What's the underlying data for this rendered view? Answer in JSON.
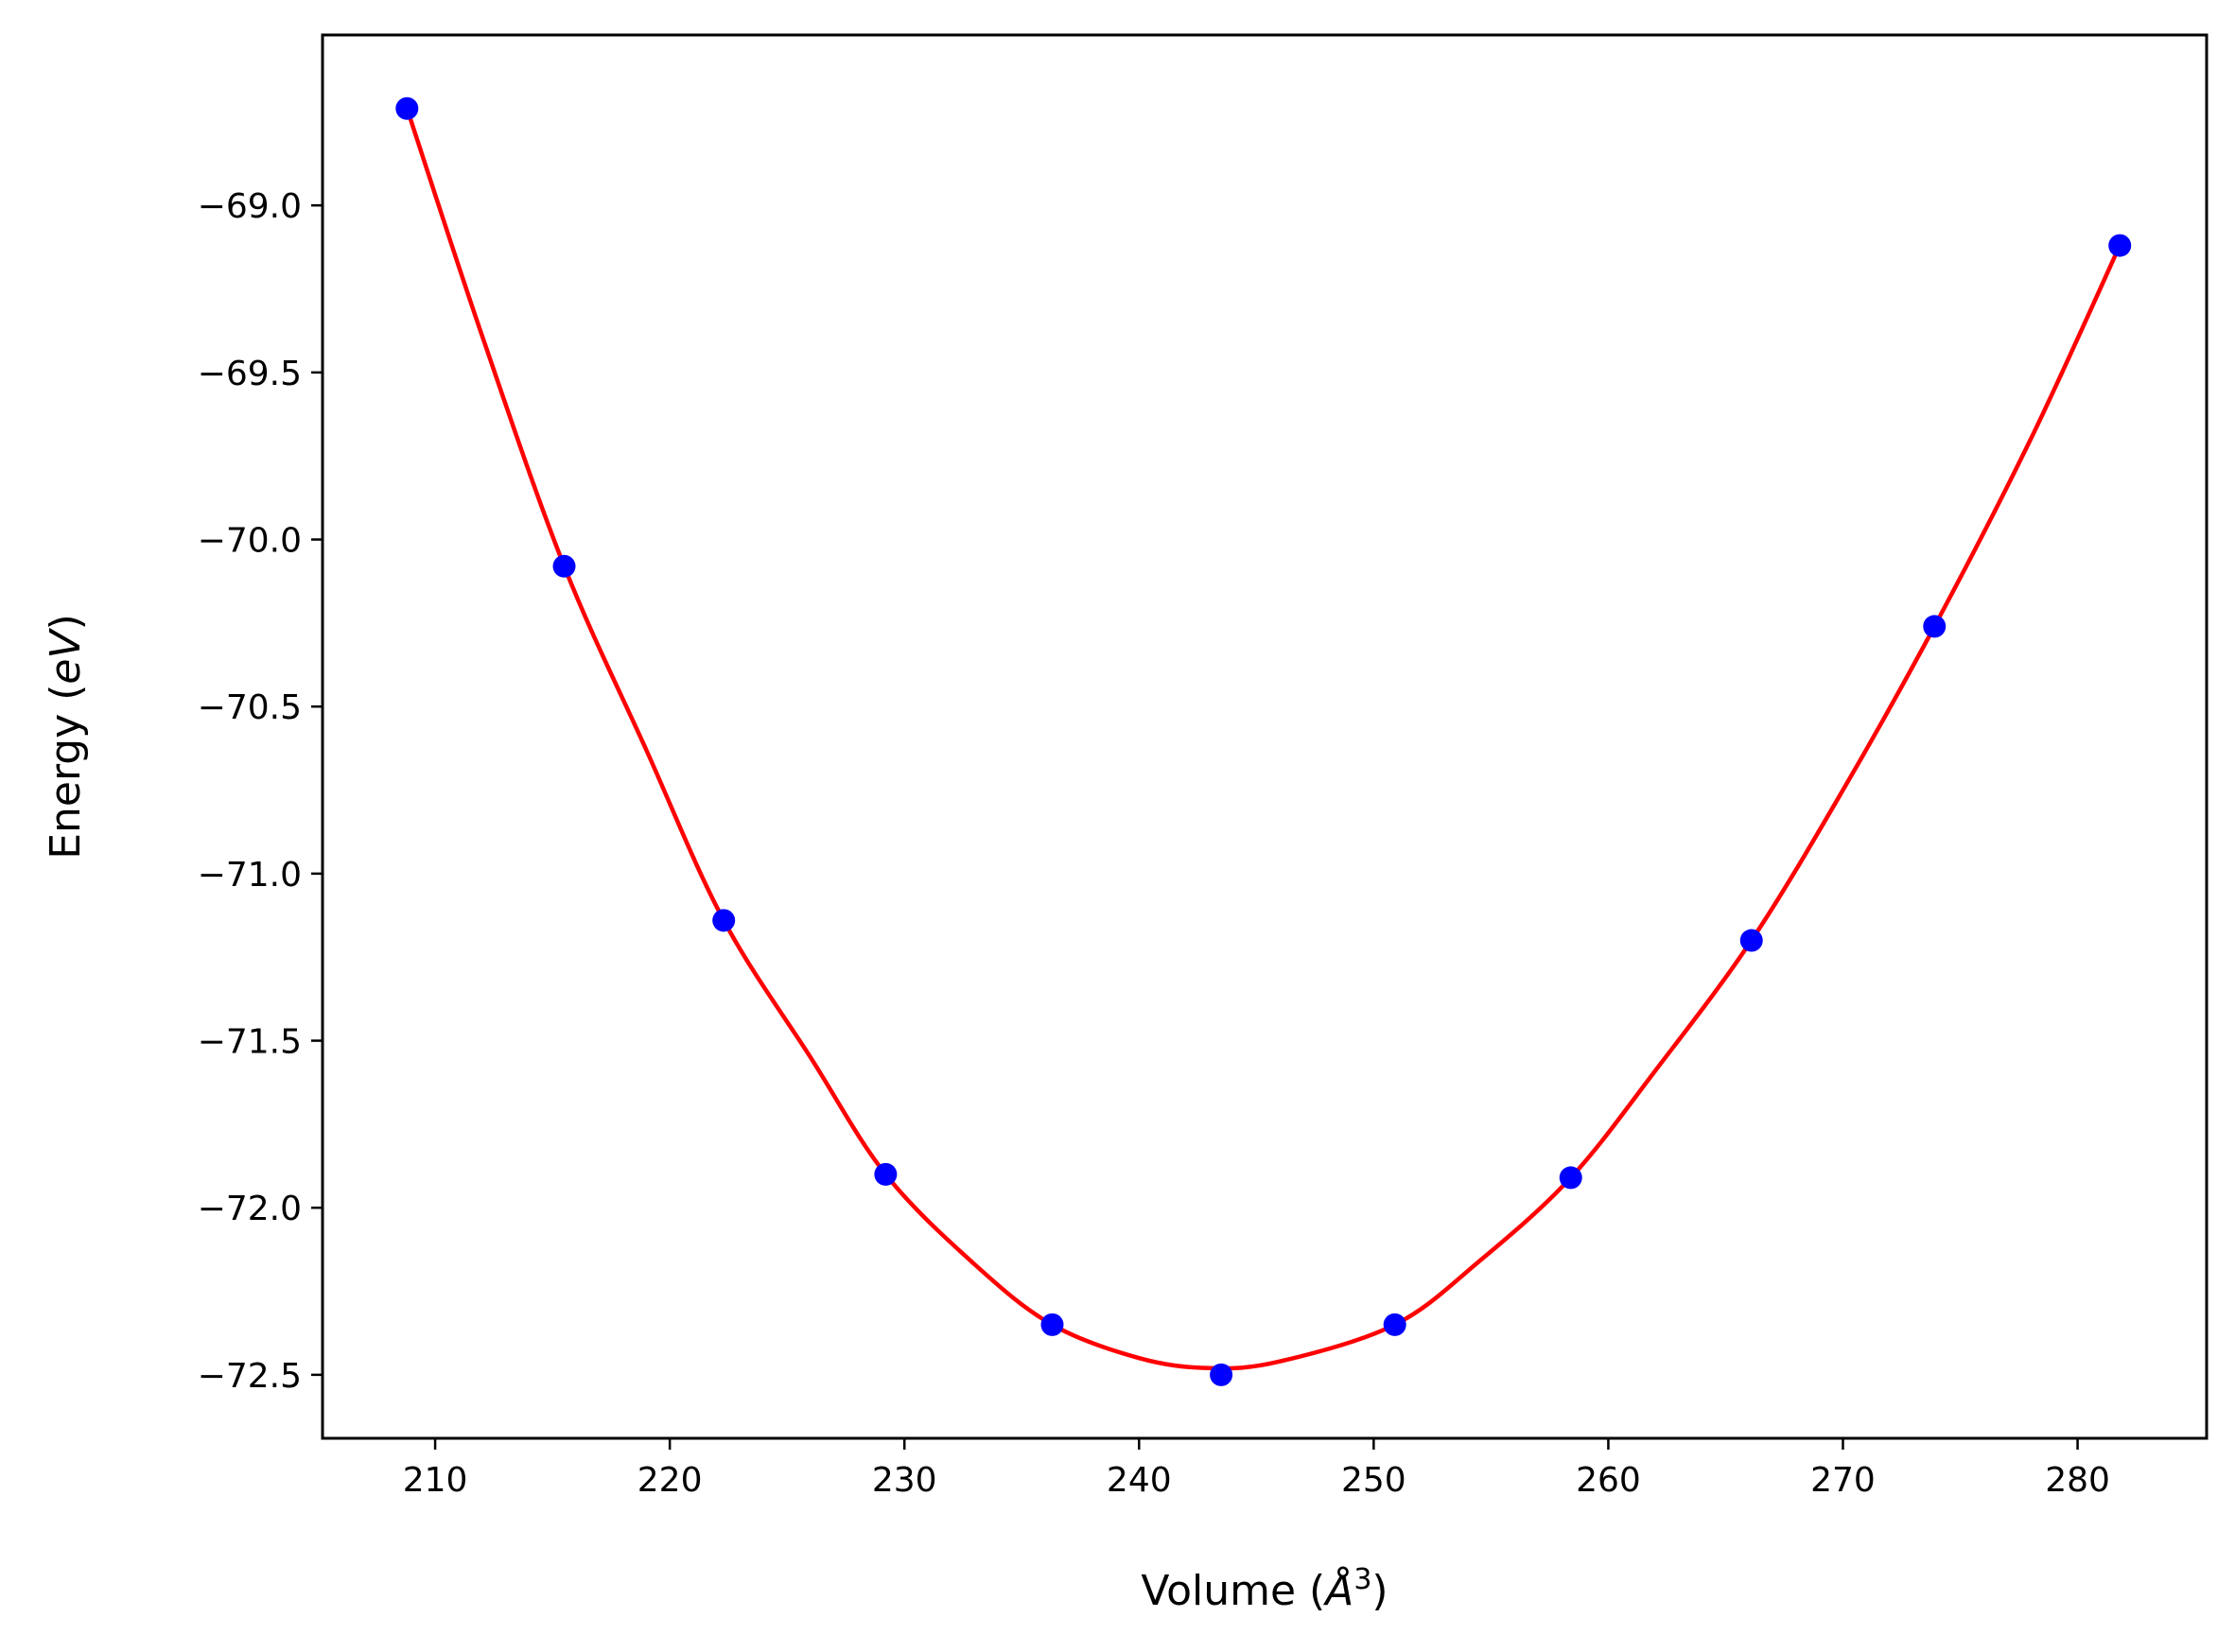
{
  "chart_data": {
    "type": "scatter",
    "xlabel": "Volume (Å^3)",
    "ylabel": "Energy (eV)",
    "xlim": [
      205.2,
      285.5
    ],
    "ylim": [
      -72.69,
      -68.49
    ],
    "xticks": [
      210,
      220,
      230,
      240,
      250,
      260,
      270,
      280
    ],
    "yticks": [
      -69.0,
      -69.5,
      -70.0,
      -70.5,
      -71.0,
      -71.5,
      -72.0,
      -72.5
    ],
    "grid": false,
    "legend": "none",
    "colors": {
      "points": "#0000ff",
      "fit": "#ff0000"
    },
    "series": [
      {
        "kind": "points",
        "x": [
          208.8,
          215.5,
          222.3,
          229.2,
          236.3,
          243.5,
          250.9,
          258.4,
          266.1,
          273.9,
          281.8
        ],
        "y": [
          -68.71,
          -70.08,
          -71.14,
          -71.9,
          -72.35,
          -72.5,
          -72.35,
          -71.91,
          -71.2,
          -70.26,
          -69.12
        ]
      },
      {
        "kind": "fit-line",
        "x": [
          208.8,
          212.0,
          215.5,
          219.0,
          222.3,
          226.0,
          229.2,
          233.0,
          236.3,
          240.0,
          243.0,
          246.0,
          250.9,
          254.5,
          258.4,
          262.0,
          266.1,
          270.0,
          273.9,
          278.0,
          281.8
        ],
        "y": [
          -68.71,
          -69.39,
          -70.08,
          -70.63,
          -71.14,
          -71.55,
          -71.9,
          -72.17,
          -72.35,
          -72.45,
          -72.48,
          -72.46,
          -72.35,
          -72.16,
          -71.91,
          -71.59,
          -71.2,
          -70.75,
          -70.26,
          -69.7,
          -69.12
        ]
      }
    ]
  }
}
